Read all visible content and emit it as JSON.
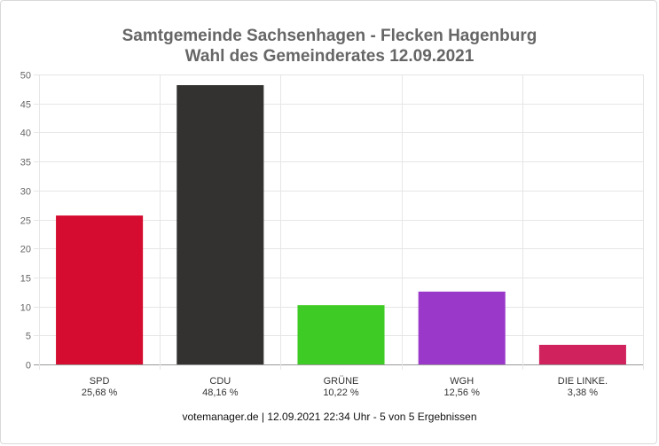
{
  "chart_data": {
    "type": "bar",
    "title": "Samtgemeinde Sachsenhagen - Flecken Hagenburg",
    "subtitle": "Wahl des Gemeinderates 12.09.2021",
    "categories": [
      "SPD",
      "CDU",
      "GRÜNE",
      "WGH",
      "DIE LINKE."
    ],
    "value_labels": [
      "25,68 %",
      "48,16 %",
      "10,22 %",
      "12,56 %",
      "3,38 %"
    ],
    "values": [
      25.68,
      48.16,
      10.22,
      12.56,
      3.38
    ],
    "colors": [
      "#d50c2f",
      "#333231",
      "#3fcb25",
      "#9a38c9",
      "#d0235e"
    ],
    "ylim": [
      0,
      50
    ],
    "yticks": [
      0,
      5,
      10,
      15,
      20,
      25,
      30,
      35,
      40,
      45,
      50
    ],
    "grid": true,
    "footer": "votemanager.de | 12.09.2021 22:34 Uhr - 5 von 5 Ergebnissen"
  }
}
